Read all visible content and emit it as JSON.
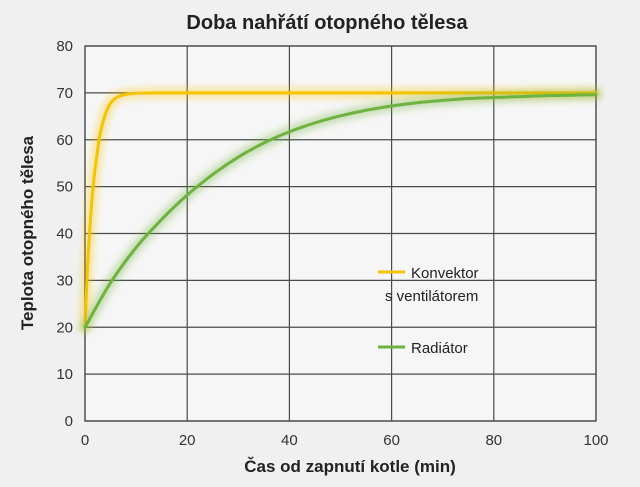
{
  "chart_data": {
    "type": "line",
    "title": "Doba nahřátí otopného tělesa",
    "xlabel": "Čas od zapnutí kotle (min)",
    "ylabel": "Teplota otopného tělesa",
    "xlim": [
      0,
      100
    ],
    "ylim": [
      0,
      80
    ],
    "x_ticks": [
      0,
      20,
      40,
      60,
      80,
      100
    ],
    "y_ticks": [
      0,
      10,
      20,
      30,
      40,
      50,
      60,
      70,
      80
    ],
    "grid": true,
    "legend_position": "middle-right",
    "series": [
      {
        "name": "Konvektor",
        "name_line2": "s ventilátorem",
        "color": "#f5c400",
        "x": [
          0,
          0.5,
          1,
          1.5,
          2,
          2.5,
          3,
          4,
          5,
          6,
          7,
          8,
          10,
          15,
          20,
          40,
          60,
          80,
          100
        ],
        "y": [
          20,
          33,
          42,
          49,
          54,
          58,
          61.5,
          65.5,
          67.8,
          68.9,
          69.4,
          69.7,
          69.9,
          70,
          70,
          70,
          70,
          70,
          70
        ]
      },
      {
        "name": "Radiátor",
        "color": "#6db33f",
        "x": [
          0,
          5,
          10,
          15,
          20,
          25,
          30,
          35,
          40,
          45,
          50,
          55,
          60,
          65,
          70,
          75,
          80,
          85,
          90,
          95,
          100
        ],
        "y": [
          20,
          29.5,
          37,
          43,
          48.2,
          52.6,
          56.3,
          59.3,
          61.7,
          63.6,
          65.1,
          66.3,
          67.2,
          67.9,
          68.4,
          68.8,
          69.0,
          69.2,
          69.4,
          69.5,
          69.6
        ]
      }
    ]
  }
}
